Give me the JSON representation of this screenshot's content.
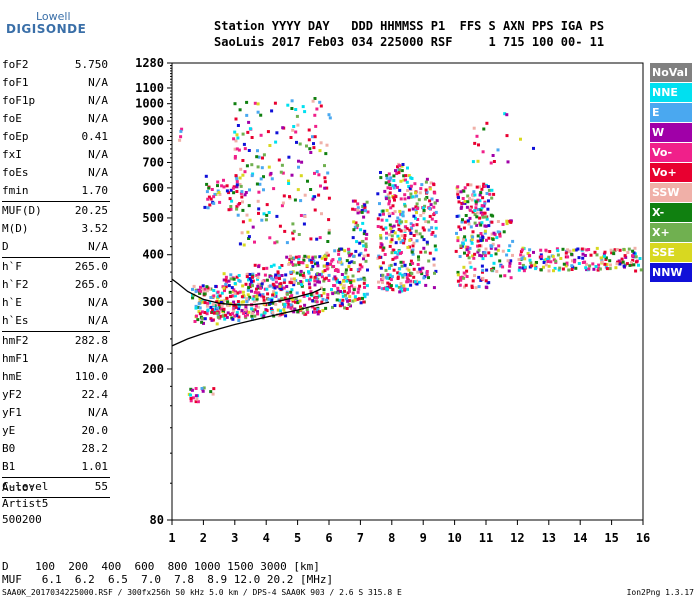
{
  "logo": {
    "line1": "Lowell",
    "line2": "DIGISONDE"
  },
  "header": {
    "row1": "Station YYYY DAY   DDD HHMMSS P1  FFS S AXN PPS IGA PS",
    "row2": "SaoLuis 2017 Feb03 034 225000 RSF     1 715 100 00- 11"
  },
  "params": [
    {
      "label": "foF2",
      "value": "5.750"
    },
    {
      "label": "foF1",
      "value": "N/A"
    },
    {
      "label": "foF1p",
      "value": "N/A"
    },
    {
      "label": "foE",
      "value": "N/A"
    },
    {
      "label": "foEp",
      "value": "0.41"
    },
    {
      "label": "fxI",
      "value": "N/A"
    },
    {
      "label": "foEs",
      "value": "N/A"
    },
    {
      "label": "fmin",
      "value": "1.70",
      "sep": true
    },
    {
      "label": "MUF(D)",
      "value": "20.25"
    },
    {
      "label": "M(D)",
      "value": "3.52"
    },
    {
      "label": "D",
      "value": "N/A",
      "sep": true
    },
    {
      "label": "h`F",
      "value": "265.0"
    },
    {
      "label": "h`F2",
      "value": "265.0"
    },
    {
      "label": "h`E",
      "value": "N/A"
    },
    {
      "label": "h`Es",
      "value": "N/A",
      "sep": true
    },
    {
      "label": "hmF2",
      "value": "282.8"
    },
    {
      "label": "hmF1",
      "value": "N/A"
    },
    {
      "label": "hmE",
      "value": "110.0"
    },
    {
      "label": "yF2",
      "value": "22.4"
    },
    {
      "label": "yF1",
      "value": "N/A"
    },
    {
      "label": "yE",
      "value": "20.0"
    },
    {
      "label": "B0",
      "value": "28.2"
    },
    {
      "label": "B1",
      "value": "1.01",
      "sep": true
    },
    {
      "label": "C-level",
      "value": "55",
      "sep": true
    }
  ],
  "auto": [
    "Auto:",
    "Artist5",
    "500200"
  ],
  "legend": [
    {
      "label": "NoVal",
      "color": "#808080"
    },
    {
      "label": "NNE",
      "color": "#00e0f0"
    },
    {
      "label": "E",
      "color": "#4aa8f0"
    },
    {
      "label": "W",
      "color": "#a000a8"
    },
    {
      "label": "Vo-",
      "color": "#f0208a"
    },
    {
      "label": "Vo+",
      "color": "#e80030"
    },
    {
      "label": "SSW",
      "color": "#f0b0a8"
    },
    {
      "label": "X-",
      "color": "#108010"
    },
    {
      "label": "X+",
      "color": "#70b050"
    },
    {
      "label": "SSE",
      "color": "#d8d820"
    },
    {
      "label": "NNW",
      "color": "#1010d8"
    }
  ],
  "dtable": {
    "row1": "D    100  200  400  600  800 1000 1500 3000 [km]",
    "row2": "MUF   6.1  6.2  6.5  7.0  7.8  8.9 12.0 20.2 [MHz]"
  },
  "footer": "SAA0K_2017034225000.RSF / 300fx256h 50 kHz 5.0 km / DPS-4 SAA0K 903 / 2.6 S 315.8 E",
  "version": "Ion2Png 1.3.17",
  "chart_data": {
    "type": "scatter",
    "title": "",
    "xlabel": "",
    "ylabel": "",
    "xlim": [
      1,
      16
    ],
    "ylim": [
      80,
      1280
    ],
    "x_ticks": [
      1,
      2,
      3,
      4,
      5,
      6,
      7,
      8,
      9,
      10,
      11,
      12,
      13,
      14,
      15,
      16
    ],
    "y_ticks": [
      80,
      200,
      300,
      400,
      500,
      600,
      700,
      800,
      900,
      1000,
      1100,
      1280
    ],
    "y_scale": "log",
    "trace_curve": {
      "name": "",
      "color": "#000000",
      "points": [
        [
          1.0,
          230
        ],
        [
          1.5,
          240
        ],
        [
          2.0,
          248
        ],
        [
          2.5,
          255
        ],
        [
          3.0,
          262
        ],
        [
          3.5,
          268
        ],
        [
          4.0,
          274
        ],
        [
          4.5,
          280
        ],
        [
          5.0,
          286
        ],
        [
          5.5,
          293
        ],
        [
          6.0,
          300
        ]
      ]
    },
    "profile_curve": {
      "name": "",
      "color": "#000000",
      "points": [
        [
          1.0,
          345
        ],
        [
          1.2,
          335
        ],
        [
          1.5,
          320
        ],
        [
          2.0,
          305
        ],
        [
          2.5,
          298
        ],
        [
          3.0,
          295
        ],
        [
          3.5,
          295
        ],
        [
          4.0,
          298
        ],
        [
          4.5,
          303
        ],
        [
          5.0,
          310
        ],
        [
          5.5,
          318
        ],
        [
          5.75,
          325
        ]
      ]
    },
    "echo_clusters": [
      {
        "x": [
          1.6,
          2.6
        ],
        "y": [
          265,
          335
        ],
        "density": 0.9
      },
      {
        "x": [
          2.6,
          3.6
        ],
        "y": [
          270,
          360
        ],
        "density": 0.8
      },
      {
        "x": [
          3.6,
          4.6
        ],
        "y": [
          275,
          380
        ],
        "density": 0.7
      },
      {
        "x": [
          4.6,
          5.8
        ],
        "y": [
          280,
          400
        ],
        "density": 0.7
      },
      {
        "x": [
          5.8,
          6.7
        ],
        "y": [
          290,
          420
        ],
        "density": 0.6
      },
      {
        "x": [
          6.7,
          7.2
        ],
        "y": [
          300,
          560
        ],
        "density": 0.5
      },
      {
        "x": [
          7.5,
          8.6
        ],
        "y": [
          320,
          700
        ],
        "density": 0.5
      },
      {
        "x": [
          8.6,
          9.4
        ],
        "y": [
          330,
          640
        ],
        "density": 0.4
      },
      {
        "x": [
          10.0,
          11.2
        ],
        "y": [
          330,
          620
        ],
        "density": 0.5
      },
      {
        "x": [
          11.2,
          11.8
        ],
        "y": [
          340,
          500
        ],
        "density": 0.3
      },
      {
        "x": [
          12.0,
          15.9
        ],
        "y": [
          365,
          420
        ],
        "density": 0.6
      },
      {
        "x": [
          2.9,
          6.0
        ],
        "y": [
          420,
          1050
        ],
        "density": 0.12
      },
      {
        "x": [
          2.0,
          3.2
        ],
        "y": [
          530,
          650
        ],
        "density": 0.35
      },
      {
        "x": [
          1.5,
          2.3
        ],
        "y": [
          165,
          180
        ],
        "density": 0.5
      },
      {
        "x": [
          10.5,
          12.5
        ],
        "y": [
          700,
          980
        ],
        "density": 0.05
      },
      {
        "x": [
          1.1,
          1.3
        ],
        "y": [
          800,
          900
        ],
        "density": 0.3
      }
    ]
  }
}
